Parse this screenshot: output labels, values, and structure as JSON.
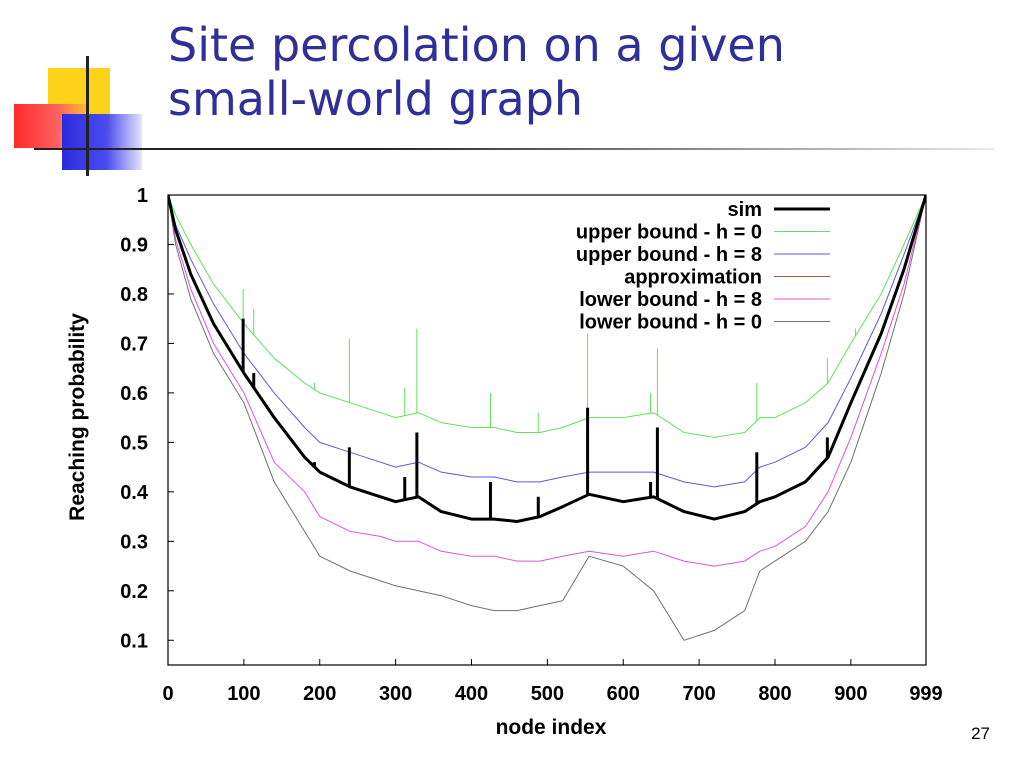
{
  "slide": {
    "title_lines": [
      "Site percolation on a given",
      "small-world graph"
    ],
    "page_number": "27",
    "title_color": "#2f2f9a"
  },
  "chart_data": {
    "type": "line",
    "xlabel": "node index",
    "ylabel": "Reaching probability",
    "xlim": [
      0,
      999
    ],
    "ylim": [
      0.05,
      1.0
    ],
    "x_ticks": [
      0,
      100,
      200,
      300,
      400,
      500,
      600,
      700,
      800,
      900,
      999
    ],
    "y_ticks": [
      0.1,
      0.2,
      0.3,
      0.4,
      0.5,
      0.6,
      0.7,
      0.8,
      0.9,
      1
    ],
    "legend_position": "top-right",
    "grid": false,
    "x": [
      0,
      10,
      30,
      60,
      100,
      140,
      180,
      200,
      240,
      280,
      300,
      330,
      360,
      400,
      430,
      460,
      490,
      520,
      555,
      600,
      640,
      680,
      720,
      760,
      780,
      800,
      840,
      870,
      900,
      940,
      970,
      999
    ],
    "series": [
      {
        "name": "sim",
        "color": "#000000",
        "width": 3,
        "values": [
          1.0,
          0.93,
          0.84,
          0.74,
          0.64,
          0.55,
          0.47,
          0.44,
          0.41,
          0.39,
          0.38,
          0.39,
          0.36,
          0.345,
          0.345,
          0.34,
          0.35,
          0.37,
          0.395,
          0.38,
          0.39,
          0.36,
          0.345,
          0.36,
          0.38,
          0.39,
          0.42,
          0.47,
          0.58,
          0.72,
          0.85,
          1.0
        ]
      },
      {
        "name": "upper bound - h = 0",
        "color": "#5fe05f",
        "width": 1,
        "values": [
          1.0,
          0.96,
          0.9,
          0.82,
          0.74,
          0.67,
          0.62,
          0.6,
          0.58,
          0.56,
          0.55,
          0.56,
          0.54,
          0.53,
          0.53,
          0.52,
          0.52,
          0.53,
          0.55,
          0.55,
          0.56,
          0.52,
          0.51,
          0.52,
          0.55,
          0.55,
          0.58,
          0.62,
          0.7,
          0.8,
          0.9,
          1.0
        ]
      },
      {
        "name": "upper bound - h = 8",
        "color": "#5a5ad8",
        "width": 1,
        "values": [
          1.0,
          0.94,
          0.87,
          0.78,
          0.68,
          0.6,
          0.53,
          0.5,
          0.48,
          0.46,
          0.45,
          0.46,
          0.44,
          0.43,
          0.43,
          0.42,
          0.42,
          0.43,
          0.44,
          0.44,
          0.44,
          0.42,
          0.41,
          0.42,
          0.45,
          0.46,
          0.49,
          0.54,
          0.63,
          0.76,
          0.88,
          1.0
        ]
      },
      {
        "name": "approximation",
        "color": "#c05050",
        "width": 1,
        "values": [
          1.0,
          0.93,
          0.84,
          0.74,
          0.64,
          0.55,
          0.47,
          0.44,
          0.41,
          0.39,
          0.38,
          0.39,
          0.36,
          0.345,
          0.345,
          0.34,
          0.35,
          0.37,
          0.395,
          0.38,
          0.39,
          0.36,
          0.345,
          0.36,
          0.38,
          0.39,
          0.42,
          0.47,
          0.58,
          0.72,
          0.85,
          1.0
        ]
      },
      {
        "name": "lower bound - h = 8",
        "color": "#e050e0",
        "width": 1,
        "values": [
          1.0,
          0.91,
          0.81,
          0.7,
          0.6,
          0.46,
          0.4,
          0.35,
          0.32,
          0.31,
          0.3,
          0.3,
          0.28,
          0.27,
          0.27,
          0.26,
          0.26,
          0.27,
          0.28,
          0.27,
          0.28,
          0.26,
          0.25,
          0.26,
          0.28,
          0.29,
          0.33,
          0.4,
          0.51,
          0.68,
          0.82,
          1.0
        ]
      },
      {
        "name": "lower bound - h = 0",
        "color": "#707070",
        "width": 1,
        "values": [
          1.0,
          0.9,
          0.79,
          0.68,
          0.58,
          0.42,
          0.32,
          0.27,
          0.24,
          0.22,
          0.21,
          0.2,
          0.19,
          0.17,
          0.16,
          0.16,
          0.17,
          0.18,
          0.27,
          0.25,
          0.2,
          0.1,
          0.12,
          0.16,
          0.24,
          0.26,
          0.3,
          0.36,
          0.46,
          0.64,
          0.8,
          1.0
        ]
      }
    ],
    "spikes": [
      {
        "x": 99,
        "sim": 0.75,
        "green": 0.81
      },
      {
        "x": 113,
        "sim": 0.64,
        "green": 0.77
      },
      {
        "x": 193,
        "sim": 0.46,
        "green": 0.62
      },
      {
        "x": 239,
        "sim": 0.49,
        "green": 0.71
      },
      {
        "x": 312,
        "sim": 0.43,
        "green": 0.61
      },
      {
        "x": 328,
        "sim": 0.52,
        "green": 0.73
      },
      {
        "x": 425,
        "sim": 0.42,
        "green": 0.6
      },
      {
        "x": 488,
        "sim": 0.39,
        "green": 0.56
      },
      {
        "x": 553,
        "sim": 0.57,
        "green": 0.72
      },
      {
        "x": 636,
        "sim": 0.42,
        "green": 0.6
      },
      {
        "x": 645,
        "sim": 0.53,
        "green": 0.69
      },
      {
        "x": 776,
        "sim": 0.48,
        "green": 0.62
      },
      {
        "x": 869,
        "sim": 0.51,
        "green": 0.67
      },
      {
        "x": 906,
        "sim": 0.6,
        "green": 0.73
      }
    ]
  }
}
